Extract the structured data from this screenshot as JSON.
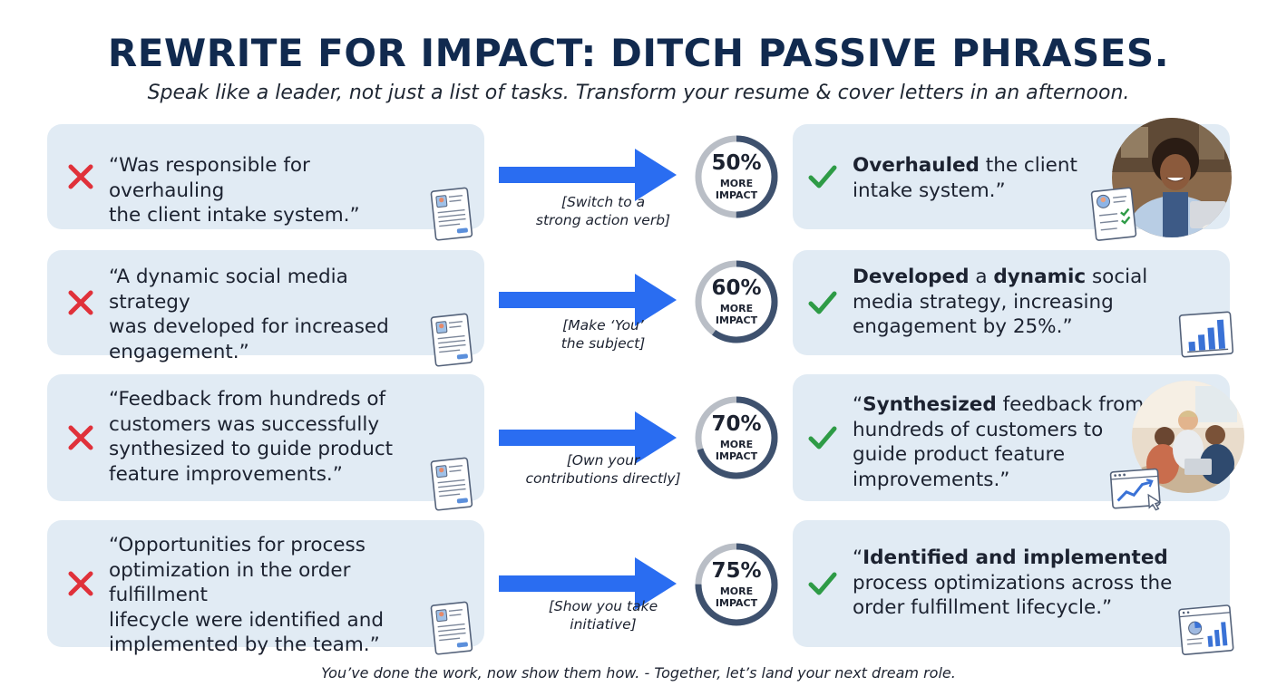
{
  "header": {
    "title": "REWRITE FOR IMPACT: DITCH PASSIVE PHRASES.",
    "subtitle": "Speak like a leader, not just a list of tasks. Transform your resume & cover letters in an afternoon."
  },
  "colors": {
    "cross": "#e0313a",
    "check": "#2e9b46",
    "arrow": "#2a6df1",
    "gauge_fill": "#3e516e",
    "gauge_track": "#b9bec6",
    "title": "#112a4f"
  },
  "rows": [
    {
      "before_lines": [
        "“Was responsible for overhauling",
        "the client intake system.”"
      ],
      "hint_lines": [
        "[Switch to a",
        "strong action verb]"
      ],
      "impact_pct": "50%",
      "impact_fraction": 0.5,
      "impact_more": "MORE",
      "impact_label": "IMPACT",
      "after_lines": [
        [
          {
            "t": "Overhauled",
            "b": true
          },
          {
            "t": " the client",
            "b": false
          }
        ],
        [
          {
            "t": "intake system.”",
            "b": false
          }
        ]
      ],
      "after_icon": "resume-checklist-icon"
    },
    {
      "before_lines": [
        "“A dynamic social media strategy",
        "was developed for increased",
        "engagement.”"
      ],
      "hint_lines": [
        "[Make ‘You’",
        "the subject]"
      ],
      "impact_pct": "60%",
      "impact_fraction": 0.6,
      "impact_more": "MORE",
      "impact_label": "IMPACT",
      "after_lines": [
        [
          {
            "t": "Developed",
            "b": true
          },
          {
            "t": " a ",
            "b": false
          },
          {
            "t": "dynamic",
            "b": true
          },
          {
            "t": " social",
            "b": false
          }
        ],
        [
          {
            "t": "media strategy, increasing",
            "b": false
          }
        ],
        [
          {
            "t": "engagement by 25%.”",
            "b": false
          }
        ]
      ],
      "after_icon": "bar-chart-icon"
    },
    {
      "before_lines": [
        "“Feedback from hundreds of",
        "customers was successfully",
        "synthesized to guide product",
        "feature improvements.”"
      ],
      "hint_lines": [
        "[Own your",
        "contributions directly]"
      ],
      "impact_pct": "70%",
      "impact_fraction": 0.7,
      "impact_more": "MORE",
      "impact_label": "IMPACT",
      "after_lines": [
        [
          {
            "t": "“",
            "b": false
          },
          {
            "t": "Synthesized",
            "b": true
          },
          {
            "t": " feedback from",
            "b": false
          }
        ],
        [
          {
            "t": "hundreds of customers to",
            "b": false
          }
        ],
        [
          {
            "t": "guide product feature",
            "b": false
          }
        ],
        [
          {
            "t": "improvements.”",
            "b": false
          }
        ]
      ],
      "after_icon": "trend-window-icon"
    },
    {
      "before_lines": [
        "“Opportunities for process",
        "optimization in the order fulfillment",
        "lifecycle were identified and",
        "implemented by the team.”"
      ],
      "hint_lines": [
        "[Show you take",
        "initiative]"
      ],
      "impact_pct": "75%",
      "impact_fraction": 0.75,
      "impact_more": "MORE",
      "impact_label": "IMPACT",
      "after_lines": [
        [
          {
            "t": "“",
            "b": false
          },
          {
            "t": "Identified and implemented",
            "b": true
          }
        ],
        [
          {
            "t": "process optimizations across the",
            "b": false
          }
        ],
        [
          {
            "t": "order fulfillment lifecycle.”",
            "b": false
          }
        ]
      ],
      "after_icon": "dashboard-window-icon"
    }
  ],
  "footer": "You’ve done the work, now show them how. - Together, let’s land your next dream role."
}
